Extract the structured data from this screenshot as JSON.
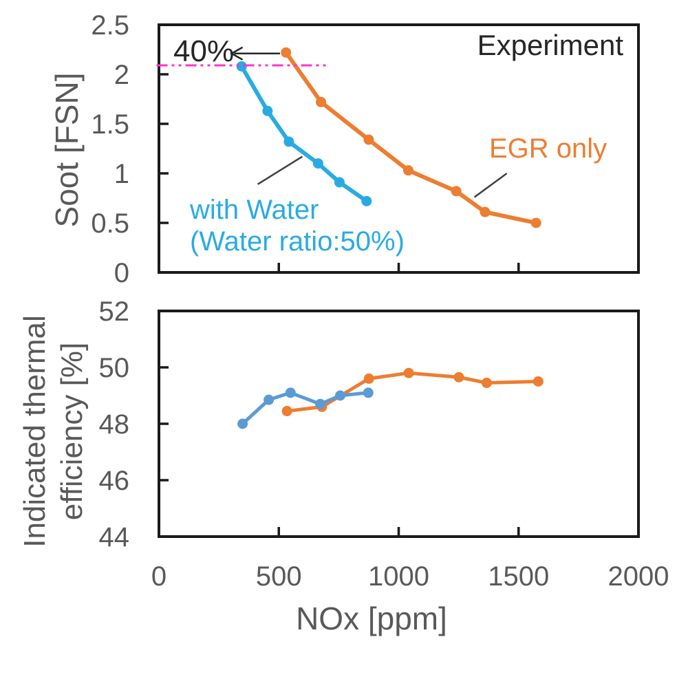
{
  "figure": {
    "background": "#ffffff"
  },
  "colors": {
    "axis_line": "#1a1a1a",
    "tick_text": "#595959",
    "axis_title": "#595959",
    "annotation_text": "#262626",
    "egr_orange": "#ED7D31",
    "water_blue_top": "#29ABE2",
    "water_blue_bottom": "#5B9BD5",
    "ref_magenta": "#FF33CC",
    "leader_line": "#404040"
  },
  "chart_data": [
    {
      "id": "soot",
      "type": "line",
      "ylabel": "Soot [FSN]",
      "xlabel": "",
      "xlim": [
        0,
        2000
      ],
      "ylim": [
        0,
        2.5
      ],
      "grid": false,
      "legend_position": "annotated-inline",
      "xticks": [
        0,
        500,
        1000,
        1500,
        2000
      ],
      "yticks": [
        0,
        0.5,
        1,
        1.5,
        2,
        2.5
      ],
      "ytick_labels": [
        "0",
        "0.5",
        "1",
        "1.5",
        "2",
        "2.5"
      ],
      "series": [
        {
          "name": "EGR only",
          "color_key": "egr_orange",
          "points": [
            [
              530,
              2.22
            ],
            [
              676,
              1.72
            ],
            [
              875,
              1.34
            ],
            [
              1040,
              1.03
            ],
            [
              1240,
              0.82
            ],
            [
              1360,
              0.61
            ],
            [
              1573,
              0.5
            ]
          ]
        },
        {
          "name": "with Water (Water ratio:50%)",
          "color_key": "water_blue_top",
          "points": [
            [
              345,
              2.08
            ],
            [
              453,
              1.63
            ],
            [
              542,
              1.32
            ],
            [
              664,
              1.1
            ],
            [
              753,
              0.91
            ],
            [
              866,
              0.72
            ]
          ]
        }
      ],
      "annotations": {
        "experiment_label": "Experiment",
        "pct_label": "40%",
        "egr_label": "EGR only",
        "water_label_line1": "with Water",
        "water_label_line2": "(Water ratio:50%)",
        "ref_line": {
          "y": 2.09,
          "x_range": [
            -10,
            707
          ]
        },
        "arrow": {
          "y": 2.21,
          "x_from": 505,
          "x_to": 303
        },
        "leader_water": [
          [
            412,
            0.89
          ],
          [
            598,
            1.17
          ]
        ],
        "leader_egr": [
          [
            1316,
            0.76
          ],
          [
            1451,
            1.0
          ]
        ]
      }
    },
    {
      "id": "ite",
      "type": "line",
      "ylabel_line1": "Indicated thermal",
      "ylabel_line2": "efficiency [%]",
      "xlabel": "NOx [ppm]",
      "xlim": [
        0,
        2000
      ],
      "ylim": [
        44,
        52
      ],
      "grid": false,
      "xticks": [
        0,
        500,
        1000,
        1500,
        2000
      ],
      "xtick_labels": [
        "0",
        "500",
        "1000",
        "1500",
        "2000"
      ],
      "yticks": [
        44,
        46,
        48,
        50,
        52
      ],
      "ytick_labels": [
        "44",
        "46",
        "48",
        "50",
        "52"
      ],
      "series": [
        {
          "name": "EGR only",
          "color_key": "egr_orange",
          "points": [
            [
              534,
              48.45
            ],
            [
              680,
              48.6
            ],
            [
              876,
              49.6
            ],
            [
              1042,
              49.8
            ],
            [
              1251,
              49.65
            ],
            [
              1367,
              49.45
            ],
            [
              1582,
              49.5
            ]
          ]
        },
        {
          "name": "with Water",
          "color_key": "water_blue_bottom",
          "points": [
            [
              349,
              48.0
            ],
            [
              458,
              48.85
            ],
            [
              549,
              49.1
            ],
            [
              673,
              48.7
            ],
            [
              756,
              49.0
            ],
            [
              873,
              49.1
            ]
          ]
        }
      ]
    }
  ]
}
